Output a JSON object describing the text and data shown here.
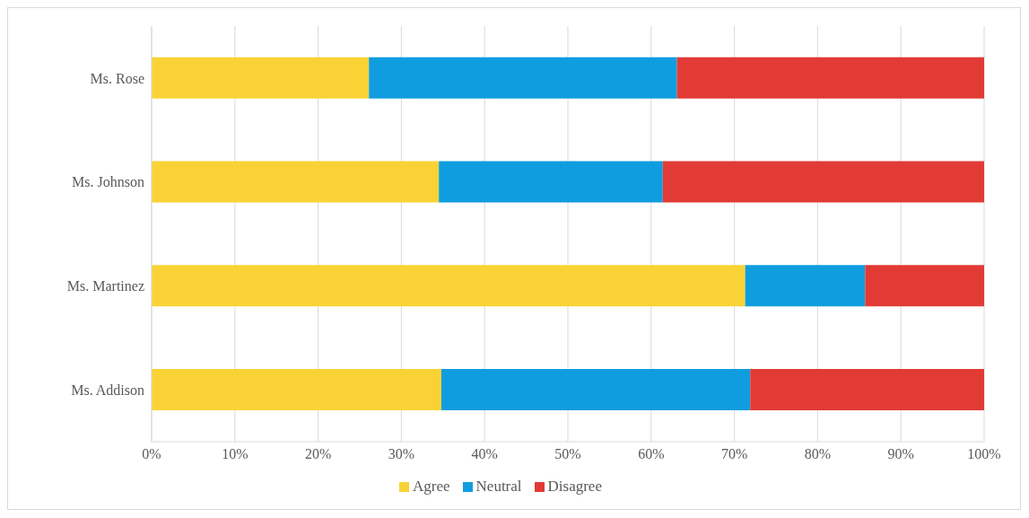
{
  "chart_data": {
    "type": "bar",
    "orientation": "horizontal",
    "stacked": true,
    "categories": [
      "Ms. Rose",
      "Ms. Johnson",
      "Ms. Martinez",
      "Ms. Addison"
    ],
    "series": [
      {
        "name": "Agree",
        "color": "#f9d335",
        "values": [
          26.1,
          34.5,
          71.3,
          34.8
        ]
      },
      {
        "name": "Neutral",
        "color": "#109ddf",
        "values": [
          37.0,
          26.9,
          14.4,
          37.1
        ]
      },
      {
        "name": "Disagree",
        "color": "#e23b36",
        "values": [
          36.9,
          38.6,
          14.3,
          28.1
        ]
      }
    ],
    "xlim": [
      0,
      100
    ],
    "xticks": [
      {
        "value": 0,
        "label": "0%"
      },
      {
        "value": 10,
        "label": "10%"
      },
      {
        "value": 20,
        "label": "20%"
      },
      {
        "value": 30,
        "label": "30%"
      },
      {
        "value": 40,
        "label": "40%"
      },
      {
        "value": 50,
        "label": "50%"
      },
      {
        "value": 60,
        "label": "60%"
      },
      {
        "value": 70,
        "label": "70%"
      },
      {
        "value": 80,
        "label": "80%"
      },
      {
        "value": 90,
        "label": "90%"
      },
      {
        "value": 100,
        "label": "100%"
      }
    ],
    "grid": "x",
    "legend": "bottom"
  }
}
